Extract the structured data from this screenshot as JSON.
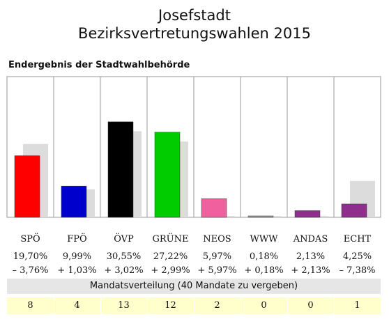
{
  "title_line1": "Josefstadt",
  "title_line2": "Bezirksvertretungswahlen 2015",
  "subtitle": "Endergebnis der Stadtwahlbehörde",
  "seats_caption": "Mandatsverteilung (40 Mandate zu vergeben)",
  "chart_data": {
    "type": "bar",
    "categories": [
      "SPÖ",
      "FPÖ",
      "ÖVP",
      "GRÜNE",
      "NEOS",
      "WWW",
      "ANDAS",
      "ECHT"
    ],
    "series": [
      {
        "values": [
          19.7,
          9.99,
          30.55,
          27.22,
          5.97,
          0.18,
          2.13,
          4.25
        ]
      },
      {
        "values": [
          23.46,
          8.96,
          27.53,
          24.23,
          0.0,
          0.0,
          0.0,
          11.63
        ]
      }
    ],
    "percent_labels": [
      "19,70%",
      "9,99%",
      "30,55%",
      "27,22%",
      "5,97%",
      "0,18%",
      "2,13%",
      "4,25%"
    ],
    "change_labels": [
      "– 3,76%",
      "+ 1,03%",
      "+ 3,02%",
      "+ 2,99%",
      "+ 5,97%",
      "+ 0,18%",
      "+ 2,13%",
      "– 7,38%"
    ],
    "seats": [
      "8",
      "4",
      "13",
      "12",
      "2",
      "0",
      "0",
      "1"
    ],
    "ylim": [
      0,
      45
    ],
    "grid": false
  },
  "colors": {
    "bars": [
      "#ff0000",
      "#0000cc",
      "#000000",
      "#00cc00",
      "#f0609e",
      "#9a9a9a",
      "#8e2f8e",
      "#8e2f8e"
    ],
    "previous": "#dcdcdc",
    "frame": "#999999"
  }
}
